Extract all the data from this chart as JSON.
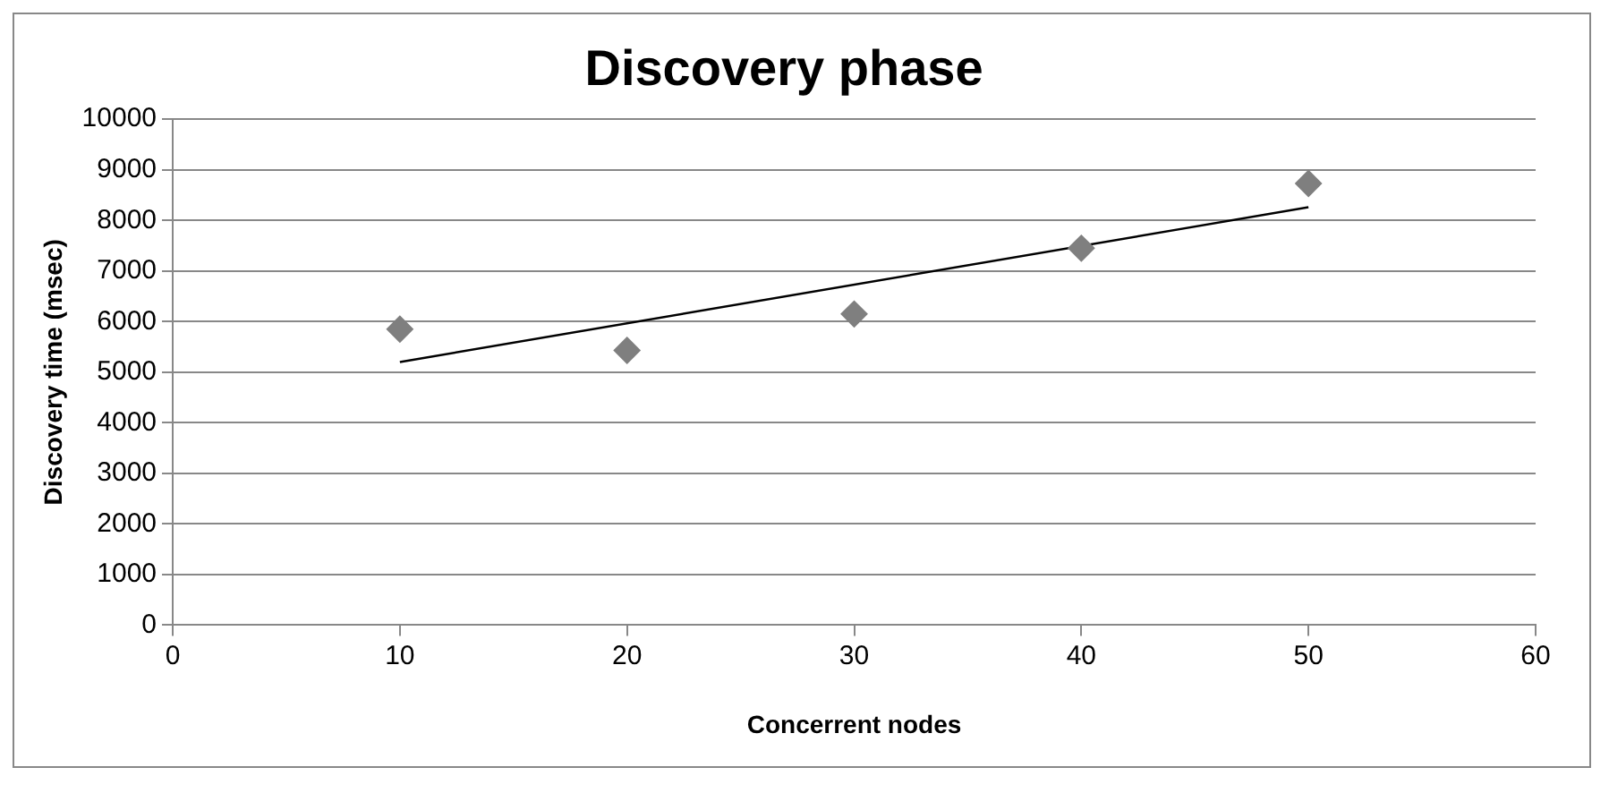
{
  "chart_data": {
    "type": "scatter",
    "title": "Discovery phase",
    "xlabel": "Concerrent nodes",
    "ylabel": "Discovery time (msec)",
    "x": [
      10,
      20,
      30,
      40,
      50
    ],
    "series": [
      {
        "color": "#7f7f7f",
        "values": [
          5850,
          5430,
          6150,
          7450,
          8730
        ],
        "marker": "diamond"
      },
      {
        "type": "line",
        "color": "#000000",
        "x": [
          10,
          50
        ],
        "values": [
          5200,
          8260
        ],
        "marker": "none"
      }
    ],
    "xlim": [
      0,
      60
    ],
    "xticks": [
      0,
      10,
      20,
      30,
      40,
      50,
      60
    ],
    "ylim": [
      0,
      10000
    ],
    "yticks": [
      0,
      1000,
      2000,
      3000,
      4000,
      5000,
      6000,
      7000,
      8000,
      9000,
      10000
    ],
    "grid": "y",
    "legend": false
  }
}
